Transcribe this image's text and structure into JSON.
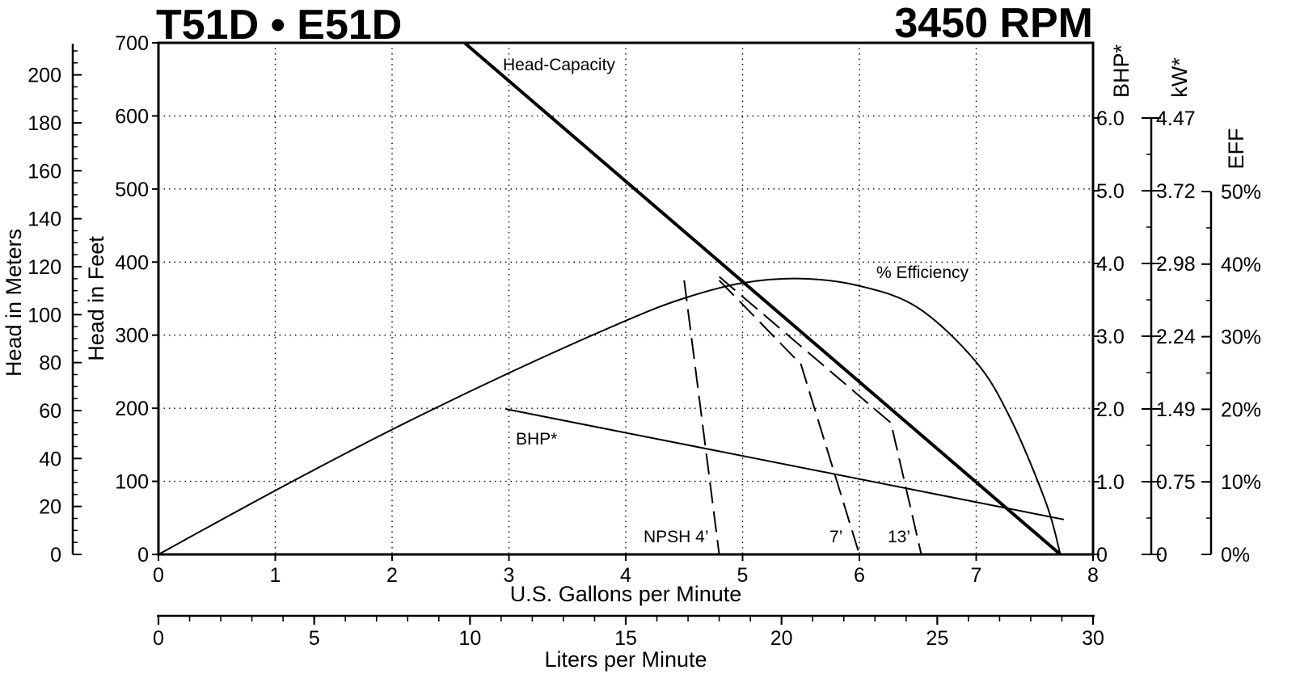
{
  "chart_data": {
    "type": "line",
    "title": "T51D • E51D",
    "subtitle": "3450 RPM",
    "xlabel": "U.S. Gallons per Minute",
    "x2label": "Liters per Minute",
    "ylabel": "Head in Feet",
    "ylabel_meters": "Head in Meters",
    "y2label": "BHP*",
    "y3label": "kW*",
    "y4label": "EFF",
    "xlim": [
      0,
      8
    ],
    "ylim": [
      0,
      700
    ],
    "x2lim": [
      0,
      30
    ],
    "y2lim": [
      0,
      7
    ],
    "grid": true,
    "x_ticks": [
      "0",
      "1",
      "2",
      "3",
      "4",
      "5",
      "6",
      "7",
      "8"
    ],
    "x2_ticks": [
      "0",
      "5",
      "10",
      "15",
      "20",
      "25",
      "30"
    ],
    "y_ticks": [
      "0",
      "100",
      "200",
      "300",
      "400",
      "500",
      "600",
      "700"
    ],
    "y_meters_ticks": [
      "0",
      "20",
      "40",
      "60",
      "80",
      "100",
      "120",
      "140",
      "160",
      "180",
      "200"
    ],
    "bhp_ticks": [
      "0",
      "1.0",
      "2.0",
      "3.0",
      "4.0",
      "5.0",
      "6.0"
    ],
    "kw_ticks": [
      "0",
      "0.75",
      "1.49",
      "2.24",
      "2.98",
      "3.72",
      "4.47"
    ],
    "eff_ticks": [
      "0%",
      "10%",
      "20%",
      "30%",
      "40%",
      "50%"
    ],
    "series": [
      {
        "name": "Head-Capacity",
        "axis": "feet",
        "x": [
          2.62,
          7.72
        ],
        "y": [
          700,
          0
        ]
      },
      {
        "name": "% Efficiency",
        "axis": "eff",
        "x": [
          0,
          1,
          2,
          3,
          4,
          4.5,
          5,
          5.5,
          6,
          6.5,
          7,
          7.3,
          7.6,
          7.72
        ],
        "y": [
          0,
          8.8,
          17.2,
          25,
          32.2,
          35.3,
          37.4,
          38,
          37,
          34,
          26.5,
          18.5,
          7,
          0
        ]
      },
      {
        "name": "BHP*",
        "axis": "bhp",
        "x": [
          2.97,
          7.75
        ],
        "y": [
          2.0,
          0.48
        ]
      },
      {
        "name": "NPSH 4’",
        "axis": "feet",
        "x": [
          4.5,
          4.8
        ],
        "y": [
          375,
          0
        ]
      },
      {
        "name": "7’",
        "axis": "feet",
        "x": [
          4.8,
          5.5,
          6.0
        ],
        "y": [
          375,
          260,
          0
        ]
      },
      {
        "name": "13’",
        "axis": "feet",
        "x": [
          4.8,
          6.27,
          6.53
        ],
        "y": [
          380,
          180,
          0
        ]
      }
    ],
    "annotations": [
      "Head-Capacity",
      "% Efficiency",
      "BHP*",
      "NPSH 4’",
      "7’",
      "13’"
    ]
  }
}
